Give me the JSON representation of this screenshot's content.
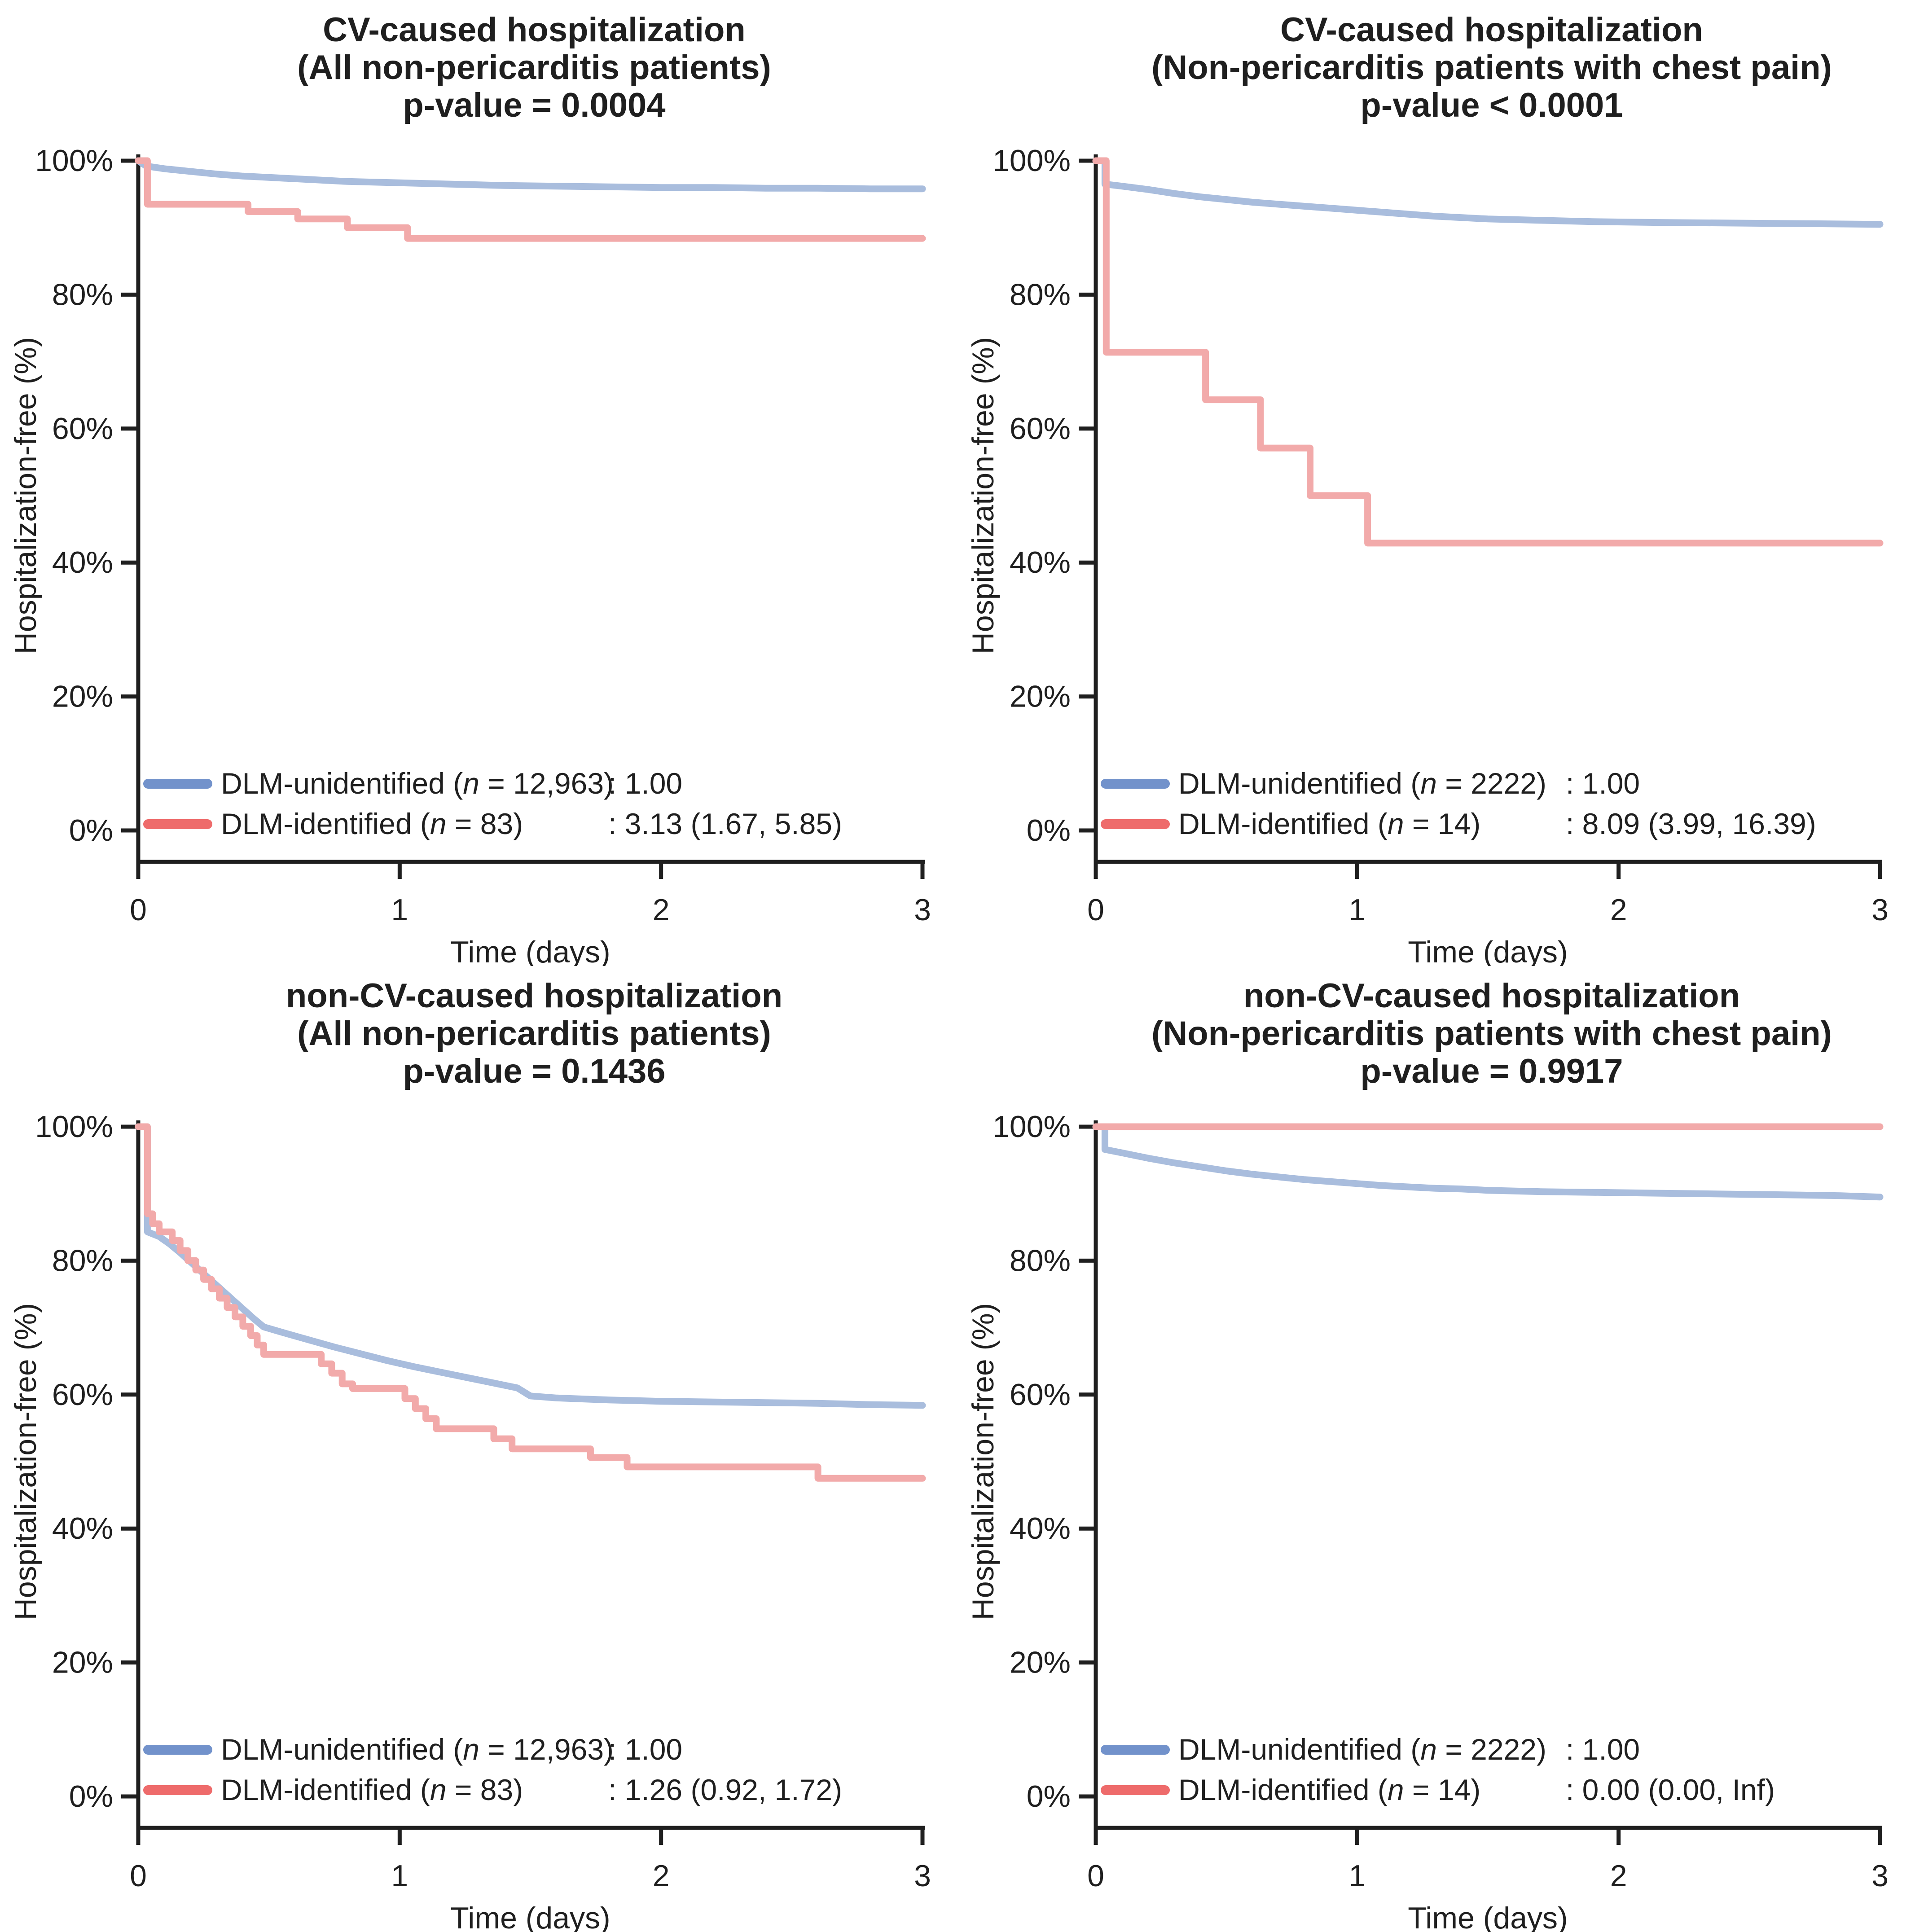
{
  "figure": {
    "background": "#ffffff",
    "text_color": "#1f1f1f",
    "axis_color": "#1f1f1f",
    "accent_blue": "#7292cb",
    "accent_red": "#ee6b6b",
    "curve_blue": "#a9bddd",
    "curve_red": "#f2aaaa"
  },
  "chart_data": [
    {
      "id": "cv-all",
      "type": "line",
      "title_lines": [
        "CV-caused hospitalization",
        "(All non-pericarditis patients)",
        "p-value = 0.0004"
      ],
      "xlabel": "Time (days)",
      "ylabel": "Hospitalization-free (%)",
      "xlim": [
        0,
        3
      ],
      "ylim": [
        0,
        100
      ],
      "x_ticks": [
        0,
        1,
        2,
        3
      ],
      "y_ticks": [
        "0%",
        "20%",
        "40%",
        "60%",
        "80%",
        "100%"
      ],
      "grid": "off",
      "legend_position": "bottom-left",
      "series": [
        {
          "name": "DLM-unidentified",
          "n": "12,963",
          "hr": ": 1.00",
          "color": "#7292cb",
          "line_color": "#a9bddd",
          "points": [
            [
              0,
              100
            ],
            [
              0.03,
              99.2
            ],
            [
              0.1,
              98.8
            ],
            [
              0.2,
              98.4
            ],
            [
              0.3,
              98.0
            ],
            [
              0.4,
              97.7
            ],
            [
              0.5,
              97.5
            ],
            [
              0.6,
              97.3
            ],
            [
              0.7,
              97.1
            ],
            [
              0.8,
              96.9
            ],
            [
              0.9,
              96.8
            ],
            [
              1.0,
              96.7
            ],
            [
              1.1,
              96.6
            ],
            [
              1.2,
              96.5
            ],
            [
              1.4,
              96.3
            ],
            [
              1.6,
              96.2
            ],
            [
              1.8,
              96.1
            ],
            [
              2.0,
              96.0
            ],
            [
              2.2,
              96.0
            ],
            [
              2.4,
              95.9
            ],
            [
              2.6,
              95.9
            ],
            [
              2.8,
              95.8
            ],
            [
              3,
              95.8
            ]
          ]
        },
        {
          "name": "DLM-identified",
          "n": "83",
          "hr": ": 3.13 (1.67, 5.85)",
          "color": "#ee6b6b",
          "line_color": "#f2aaaa",
          "points": [
            [
              0,
              100
            ],
            [
              0.035,
              100
            ],
            [
              0.035,
              93.5
            ],
            [
              0.42,
              93.5
            ],
            [
              0.42,
              92.4
            ],
            [
              0.61,
              92.4
            ],
            [
              0.61,
              91.3
            ],
            [
              0.8,
              91.3
            ],
            [
              0.8,
              90.0
            ],
            [
              1.03,
              90.0
            ],
            [
              1.03,
              88.4
            ],
            [
              3,
              88.4
            ]
          ]
        }
      ]
    },
    {
      "id": "cv-chestpain",
      "type": "line",
      "title_lines": [
        "CV-caused hospitalization",
        "(Non-pericarditis patients with chest pain)",
        "p-value < 0.0001"
      ],
      "xlabel": "Time (days)",
      "ylabel": "Hospitalization-free (%)",
      "xlim": [
        0,
        3
      ],
      "ylim": [
        0,
        100
      ],
      "x_ticks": [
        0,
        1,
        2,
        3
      ],
      "y_ticks": [
        "0%",
        "20%",
        "40%",
        "60%",
        "80%",
        "100%"
      ],
      "grid": "off",
      "legend_position": "bottom-left",
      "series": [
        {
          "name": "DLM-unidentified",
          "n": "2222",
          "hr": ": 1.00",
          "color": "#7292cb",
          "line_color": "#a9bddd",
          "points": [
            [
              0,
              100
            ],
            [
              0.035,
              100
            ],
            [
              0.035,
              96.5
            ],
            [
              0.1,
              96.2
            ],
            [
              0.2,
              95.7
            ],
            [
              0.3,
              95.1
            ],
            [
              0.4,
              94.6
            ],
            [
              0.5,
              94.2
            ],
            [
              0.6,
              93.8
            ],
            [
              0.7,
              93.5
            ],
            [
              0.8,
              93.2
            ],
            [
              0.9,
              92.9
            ],
            [
              1.0,
              92.6
            ],
            [
              1.1,
              92.3
            ],
            [
              1.2,
              92.0
            ],
            [
              1.3,
              91.7
            ],
            [
              1.4,
              91.5
            ],
            [
              1.5,
              91.3
            ],
            [
              1.7,
              91.1
            ],
            [
              1.9,
              90.9
            ],
            [
              2.1,
              90.8
            ],
            [
              2.4,
              90.7
            ],
            [
              2.7,
              90.6
            ],
            [
              3,
              90.5
            ]
          ]
        },
        {
          "name": "DLM-identified",
          "n": "14",
          "hr": ": 8.09 (3.99, 16.39)",
          "color": "#ee6b6b",
          "line_color": "#f2aaaa",
          "points": [
            [
              0,
              100
            ],
            [
              0.04,
              100
            ],
            [
              0.04,
              71.4
            ],
            [
              0.42,
              71.4
            ],
            [
              0.42,
              64.3
            ],
            [
              0.63,
              64.3
            ],
            [
              0.63,
              57.1
            ],
            [
              0.82,
              57.1
            ],
            [
              0.82,
              50.0
            ],
            [
              1.04,
              50.0
            ],
            [
              1.04,
              42.9
            ],
            [
              3,
              42.9
            ]
          ]
        }
      ]
    },
    {
      "id": "noncv-all",
      "type": "line",
      "title_lines": [
        "non-CV-caused hospitalization",
        "(All non-pericarditis patients)",
        "p-value = 0.1436"
      ],
      "xlabel": "Time (days)",
      "ylabel": "Hospitalization-free (%)",
      "xlim": [
        0,
        3
      ],
      "ylim": [
        0,
        100
      ],
      "x_ticks": [
        0,
        1,
        2,
        3
      ],
      "y_ticks": [
        "0%",
        "20%",
        "40%",
        "60%",
        "80%",
        "100%"
      ],
      "grid": "off",
      "legend_position": "bottom-left",
      "series": [
        {
          "name": "DLM-unidentified",
          "n": "12,963",
          "hr": ": 1.00",
          "color": "#7292cb",
          "line_color": "#a9bddd",
          "points": [
            [
              0,
              100
            ],
            [
              0.035,
              100
            ],
            [
              0.035,
              84.3
            ],
            [
              0.08,
              83.6
            ],
            [
              0.12,
              82.5
            ],
            [
              0.16,
              81.2
            ],
            [
              0.2,
              79.8
            ],
            [
              0.24,
              78.4
            ],
            [
              0.28,
              77.0
            ],
            [
              0.32,
              75.6
            ],
            [
              0.36,
              74.2
            ],
            [
              0.4,
              72.8
            ],
            [
              0.44,
              71.4
            ],
            [
              0.48,
              70.1
            ],
            [
              0.55,
              69.3
            ],
            [
              0.65,
              68.2
            ],
            [
              0.75,
              67.1
            ],
            [
              0.85,
              66.1
            ],
            [
              0.95,
              65.1
            ],
            [
              1.05,
              64.2
            ],
            [
              1.15,
              63.4
            ],
            [
              1.25,
              62.6
            ],
            [
              1.35,
              61.8
            ],
            [
              1.45,
              61.0
            ],
            [
              1.5,
              59.8
            ],
            [
              1.6,
              59.5
            ],
            [
              1.8,
              59.2
            ],
            [
              2.0,
              59.0
            ],
            [
              2.2,
              58.9
            ],
            [
              2.4,
              58.8
            ],
            [
              2.6,
              58.7
            ],
            [
              2.8,
              58.5
            ],
            [
              3,
              58.4
            ]
          ]
        },
        {
          "name": "DLM-identified",
          "n": "83",
          "hr": ": 1.26 (0.92, 1.72)",
          "color": "#ee6b6b",
          "line_color": "#f2aaaa",
          "points": [
            [
              0,
              100
            ],
            [
              0.035,
              100
            ],
            [
              0.035,
              87.0
            ],
            [
              0.055,
              87.0
            ],
            [
              0.055,
              85.5
            ],
            [
              0.08,
              85.5
            ],
            [
              0.08,
              84.3
            ],
            [
              0.13,
              84.3
            ],
            [
              0.13,
              83.0
            ],
            [
              0.16,
              83.0
            ],
            [
              0.16,
              81.5
            ],
            [
              0.19,
              81.5
            ],
            [
              0.19,
              80.0
            ],
            [
              0.22,
              80.0
            ],
            [
              0.22,
              78.6
            ],
            [
              0.25,
              78.6
            ],
            [
              0.25,
              77.2
            ],
            [
              0.28,
              77.2
            ],
            [
              0.28,
              75.8
            ],
            [
              0.31,
              75.8
            ],
            [
              0.31,
              74.4
            ],
            [
              0.34,
              74.4
            ],
            [
              0.34,
              73.0
            ],
            [
              0.37,
              73.0
            ],
            [
              0.37,
              71.6
            ],
            [
              0.4,
              71.6
            ],
            [
              0.4,
              70.2
            ],
            [
              0.43,
              70.2
            ],
            [
              0.43,
              68.8
            ],
            [
              0.455,
              68.8
            ],
            [
              0.455,
              67.4
            ],
            [
              0.48,
              67.4
            ],
            [
              0.48,
              66.0
            ],
            [
              0.7,
              66.0
            ],
            [
              0.7,
              64.6
            ],
            [
              0.74,
              64.6
            ],
            [
              0.74,
              63.2
            ],
            [
              0.78,
              63.2
            ],
            [
              0.78,
              61.6
            ],
            [
              0.82,
              61.6
            ],
            [
              0.82,
              60.9
            ],
            [
              1.02,
              60.9
            ],
            [
              1.02,
              59.4
            ],
            [
              1.06,
              59.4
            ],
            [
              1.06,
              57.9
            ],
            [
              1.1,
              57.9
            ],
            [
              1.1,
              56.4
            ],
            [
              1.14,
              56.4
            ],
            [
              1.14,
              54.9
            ],
            [
              1.36,
              54.9
            ],
            [
              1.36,
              53.4
            ],
            [
              1.43,
              53.4
            ],
            [
              1.43,
              51.9
            ],
            [
              1.73,
              51.9
            ],
            [
              1.73,
              50.6
            ],
            [
              1.87,
              50.6
            ],
            [
              1.87,
              49.2
            ],
            [
              2.6,
              49.2
            ],
            [
              2.6,
              47.5
            ],
            [
              3,
              47.5
            ]
          ]
        }
      ]
    },
    {
      "id": "noncv-chestpain",
      "type": "line",
      "title_lines": [
        "non-CV-caused hospitalization",
        "(Non-pericarditis patients with chest pain)",
        "p-value = 0.9917"
      ],
      "xlabel": "Time (days)",
      "ylabel": "Hospitalization-free (%)",
      "xlim": [
        0,
        3
      ],
      "ylim": [
        0,
        100
      ],
      "x_ticks": [
        0,
        1,
        2,
        3
      ],
      "y_ticks": [
        "0%",
        "20%",
        "40%",
        "60%",
        "80%",
        "100%"
      ],
      "grid": "off",
      "legend_position": "bottom-left",
      "series": [
        {
          "name": "DLM-unidentified",
          "n": "2222",
          "hr": ": 1.00",
          "color": "#7292cb",
          "line_color": "#a9bddd",
          "points": [
            [
              0,
              100
            ],
            [
              0.035,
              100
            ],
            [
              0.035,
              96.6
            ],
            [
              0.1,
              96.1
            ],
            [
              0.2,
              95.3
            ],
            [
              0.3,
              94.6
            ],
            [
              0.4,
              94.0
            ],
            [
              0.5,
              93.4
            ],
            [
              0.6,
              92.9
            ],
            [
              0.7,
              92.5
            ],
            [
              0.8,
              92.1
            ],
            [
              0.9,
              91.8
            ],
            [
              1.0,
              91.5
            ],
            [
              1.1,
              91.2
            ],
            [
              1.2,
              91.0
            ],
            [
              1.3,
              90.8
            ],
            [
              1.4,
              90.7
            ],
            [
              1.5,
              90.5
            ],
            [
              1.7,
              90.3
            ],
            [
              1.9,
              90.2
            ],
            [
              2.1,
              90.1
            ],
            [
              2.3,
              90.0
            ],
            [
              2.5,
              89.9
            ],
            [
              2.7,
              89.8
            ],
            [
              2.85,
              89.7
            ],
            [
              3,
              89.5
            ]
          ]
        },
        {
          "name": "DLM-identified",
          "n": "14",
          "hr": ": 0.00 (0.00, Inf)",
          "color": "#ee6b6b",
          "line_color": "#f2aaaa",
          "points": [
            [
              0,
              100
            ],
            [
              3,
              100
            ]
          ]
        }
      ]
    }
  ]
}
